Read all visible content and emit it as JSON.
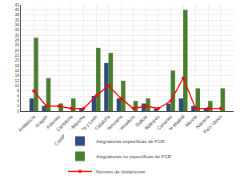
{
  "chart_data": {
    "type": "bar",
    "categories": [
      "Andalucía",
      "Aragón",
      "Asturias",
      "Cantabria",
      "Castilla La Mancha",
      "Castilla y León",
      "Cataluña",
      "Comunidad Valenciana",
      "Extremadura",
      "Galicia",
      "Islas Baleares",
      "Islas Canarias",
      "Comunidad de Madrid",
      "Murcia",
      "Navarra",
      "País Vasco"
    ],
    "series": [
      {
        "name": "Asignaturas específicas de FCR",
        "type": "bar",
        "color": "#2e4d7b",
        "values": [
          5,
          2,
          0,
          0,
          1,
          6,
          19,
          5,
          0,
          3,
          1,
          3,
          5,
          2,
          1,
          0
        ]
      },
      {
        "name": "Asignaturas no específicas de FCR",
        "type": "bar",
        "color": "#4a7c2f",
        "values": [
          29,
          13,
          3,
          5,
          0,
          25,
          23,
          12,
          4,
          5,
          0,
          16,
          40,
          9,
          4,
          9
        ]
      },
      {
        "name": "Número de titulaciones",
        "type": "line",
        "color": "#ff0000",
        "marker": "circle",
        "values": [
          8,
          2,
          2,
          1,
          1,
          6,
          10,
          5,
          1,
          2,
          1,
          4,
          13,
          1,
          1,
          1
        ]
      }
    ],
    "ylim": [
      0,
      42
    ],
    "yticks": [
      0,
      2,
      4,
      6,
      8,
      10,
      12,
      14,
      16,
      18,
      20,
      22,
      24,
      26,
      28,
      30,
      32,
      34,
      36,
      38,
      40,
      42
    ],
    "grid": true,
    "legend": "bottom"
  }
}
